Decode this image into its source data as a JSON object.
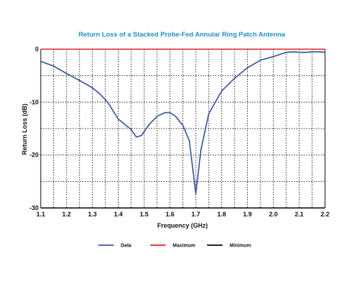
{
  "chart_data": {
    "type": "line",
    "title": "Return Loss of a Stacked Probe-Fed Annular Ring Patch Antenna",
    "xlabel": "Frequency (GHz)",
    "ylabel": "Return Loss (dB)",
    "xlim": [
      1.1,
      2.2
    ],
    "ylim": [
      -30,
      0
    ],
    "x_ticks": [
      "1.1",
      "1.2",
      "1.3",
      "1.4",
      "1.5",
      "1.6",
      "1.7",
      "1.8",
      "1.9",
      "2.0",
      "2.1",
      "2.2"
    ],
    "y_ticks": [
      "0",
      "-10",
      "-20",
      "-30"
    ],
    "grid": true,
    "legend_position": "bottom",
    "series": [
      {
        "name": "Data",
        "color": "#3b54a0",
        "x": [
          1.1,
          1.15,
          1.2,
          1.25,
          1.3,
          1.33,
          1.36,
          1.4,
          1.45,
          1.47,
          1.49,
          1.52,
          1.55,
          1.58,
          1.6,
          1.62,
          1.65,
          1.675,
          1.7,
          1.72,
          1.75,
          1.8,
          1.85,
          1.9,
          1.95,
          2.0,
          2.05,
          2.08,
          2.1,
          2.13,
          2.15,
          2.18,
          2.2
        ],
        "y": [
          -2.3,
          -3.2,
          -4.6,
          -5.9,
          -7.3,
          -8.5,
          -10.1,
          -13.2,
          -15.2,
          -16.6,
          -16.3,
          -14.2,
          -12.7,
          -12.0,
          -12.0,
          -12.6,
          -14.4,
          -17.3,
          -27.3,
          -19.0,
          -12.2,
          -7.9,
          -5.5,
          -3.5,
          -2.1,
          -1.4,
          -0.6,
          -0.5,
          -0.6,
          -0.6,
          -0.5,
          -0.5,
          -0.6
        ]
      },
      {
        "name": "Maximum",
        "color": "#e02020",
        "x": [
          1.1,
          2.2
        ],
        "y": [
          0,
          0
        ]
      },
      {
        "name": "Minimum",
        "color": "#000000",
        "x": [
          1.1,
          2.2
        ],
        "y": [
          -30,
          -30
        ]
      }
    ]
  }
}
